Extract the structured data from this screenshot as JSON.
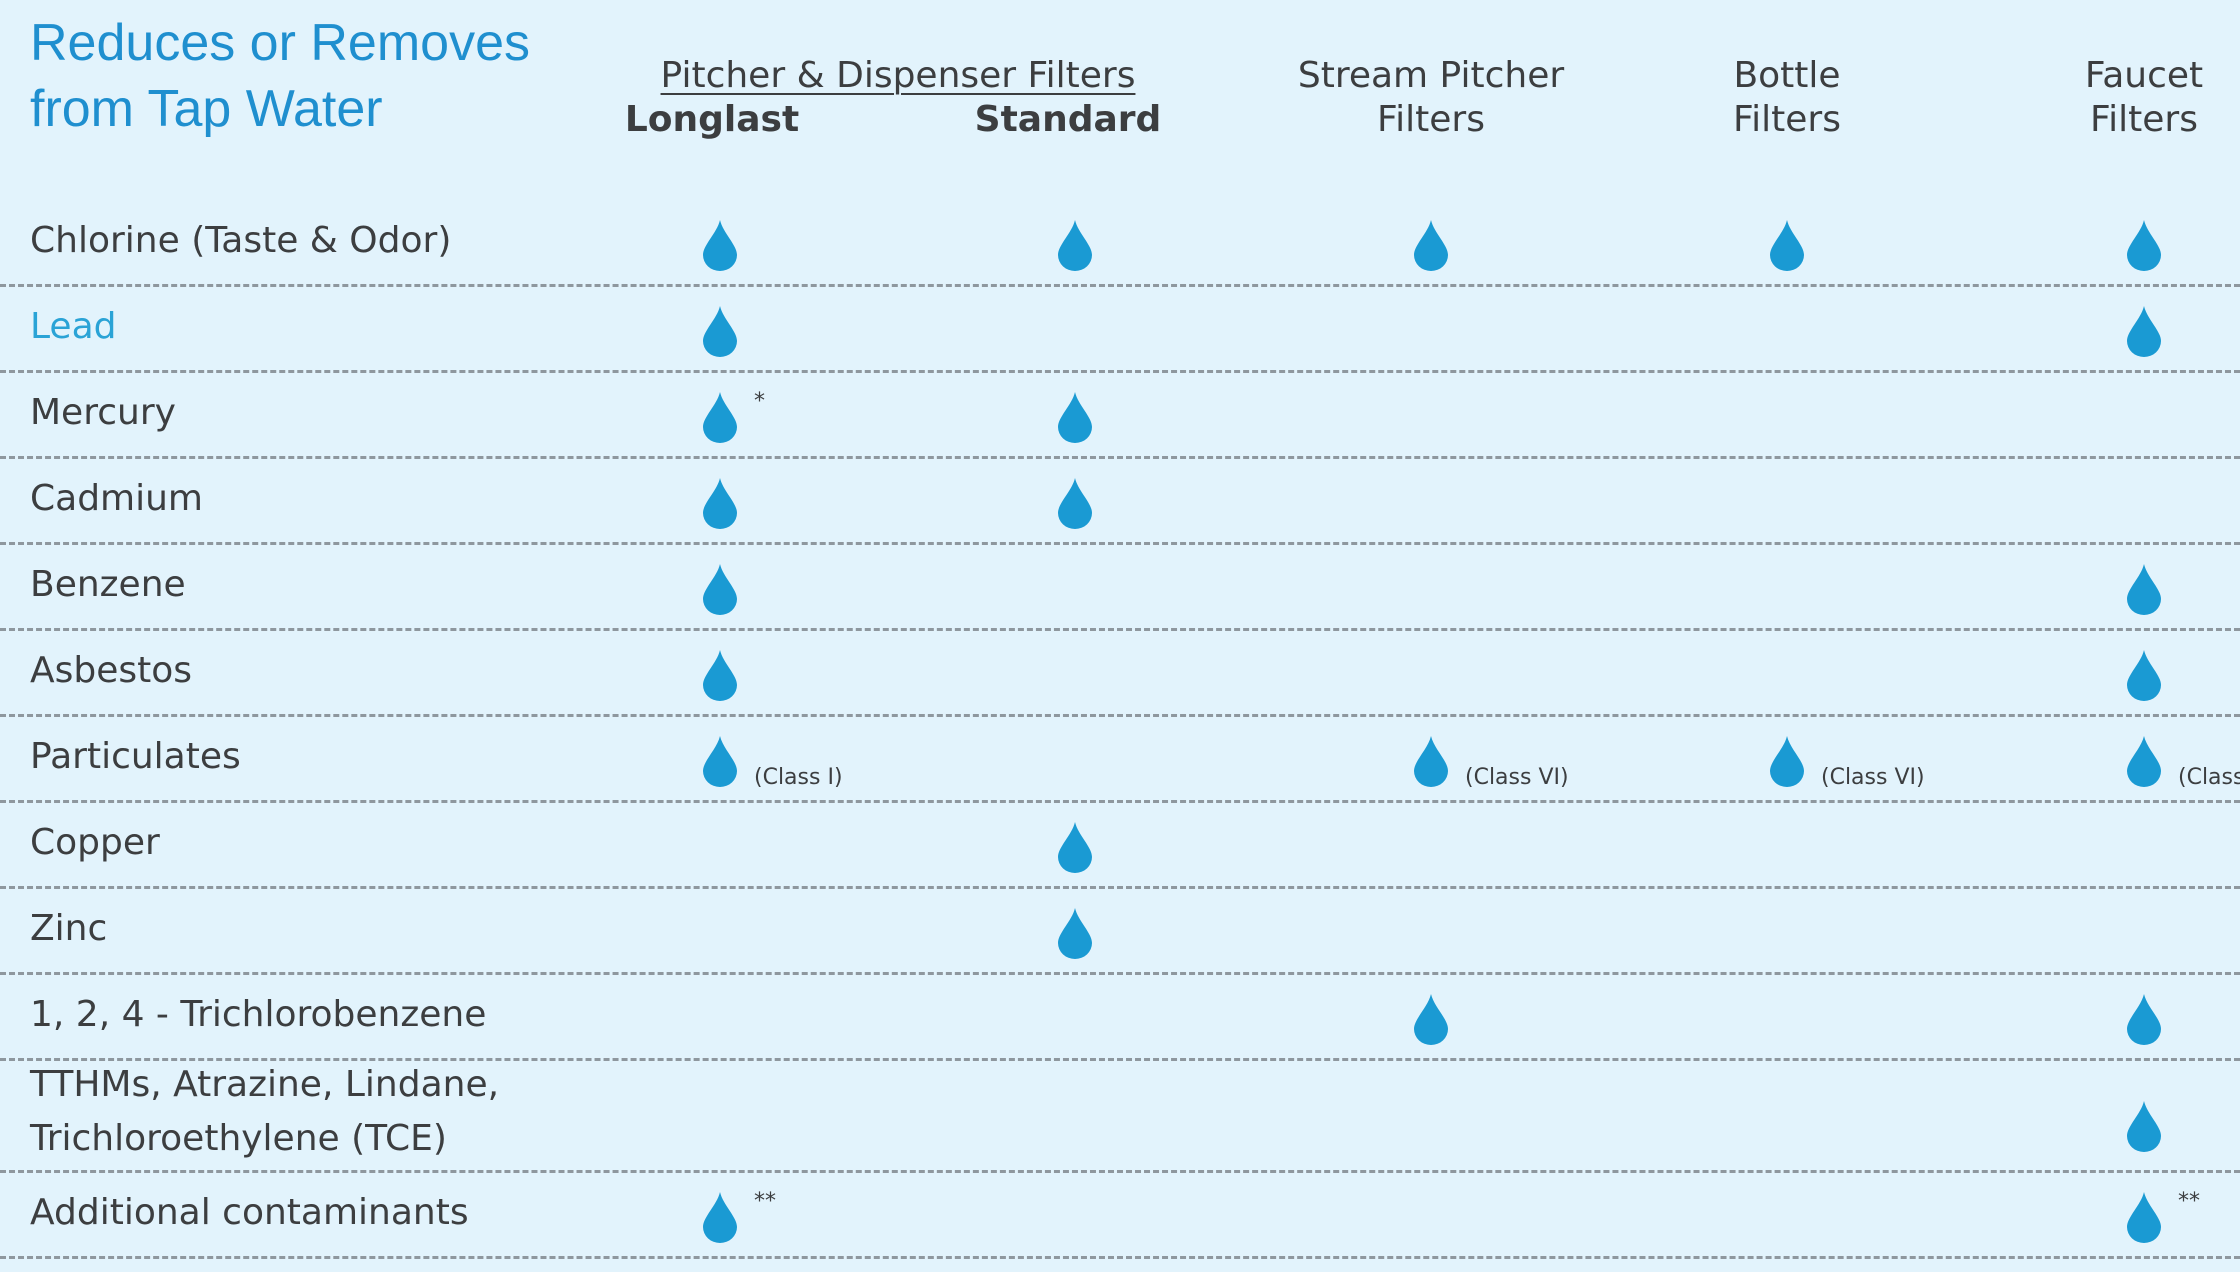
{
  "title": {
    "line1": "Reduces or Removes",
    "line2": "from Tap Water"
  },
  "colors": {
    "drop": "#1a9ad3",
    "title": "#1f8fcf",
    "highlight_label": "#2aa3d6",
    "text": "#3c3e40",
    "background": "#e2f3fc",
    "divider": "#8e979e"
  },
  "columns": {
    "group_label": "Pitcher & Dispenser Filters",
    "longlast": "Longlast",
    "standard": "Standard",
    "stream_line1": "Stream Pitcher",
    "stream_line2": "Filters",
    "bottle_line1": "Bottle",
    "bottle_line2": "Filters",
    "faucet_line1": "Faucet",
    "faucet_line2": "Filters"
  },
  "column_keys": [
    "longlast",
    "standard",
    "stream",
    "bottle",
    "faucet"
  ],
  "icon": "water-drop-icon",
  "rows": [
    {
      "label": "Chlorine (Taste & Odor)",
      "highlight": false,
      "drops": [
        true,
        true,
        true,
        true,
        true
      ],
      "notes": [
        "",
        "",
        "",
        "",
        ""
      ]
    },
    {
      "label": "Lead",
      "highlight": true,
      "drops": [
        true,
        false,
        false,
        false,
        true
      ],
      "notes": [
        "",
        "",
        "",
        "",
        ""
      ]
    },
    {
      "label": "Mercury",
      "highlight": false,
      "drops": [
        true,
        true,
        false,
        false,
        false
      ],
      "notes": [
        "*",
        "",
        "",
        "",
        ""
      ]
    },
    {
      "label": "Cadmium",
      "highlight": false,
      "drops": [
        true,
        true,
        false,
        false,
        false
      ],
      "notes": [
        "",
        "",
        "",
        "",
        ""
      ]
    },
    {
      "label": "Benzene",
      "highlight": false,
      "drops": [
        true,
        false,
        false,
        false,
        true
      ],
      "notes": [
        "",
        "",
        "",
        "",
        ""
      ]
    },
    {
      "label": "Asbestos",
      "highlight": false,
      "drops": [
        true,
        false,
        false,
        false,
        true
      ],
      "notes": [
        "",
        "",
        "",
        "",
        ""
      ]
    },
    {
      "label": "Particulates",
      "highlight": false,
      "drops": [
        true,
        false,
        true,
        true,
        true
      ],
      "notes": [
        "(Class I)",
        "",
        "(Class VI)",
        "(Class VI)",
        "(Class"
      ]
    },
    {
      "label": "Copper",
      "highlight": false,
      "drops": [
        false,
        true,
        false,
        false,
        false
      ],
      "notes": [
        "",
        "",
        "",
        "",
        ""
      ]
    },
    {
      "label": "Zinc",
      "highlight": false,
      "drops": [
        false,
        true,
        false,
        false,
        false
      ],
      "notes": [
        "",
        "",
        "",
        "",
        ""
      ]
    },
    {
      "label": "1, 2, 4 - Trichlorobenzene",
      "highlight": false,
      "drops": [
        false,
        false,
        true,
        false,
        true
      ],
      "notes": [
        "",
        "",
        "",
        "",
        ""
      ]
    },
    {
      "label": "TTHMs, Atrazine, Lindane,",
      "label2": "Trichloroethylene (TCE)",
      "highlight": false,
      "drops": [
        false,
        false,
        false,
        false,
        true
      ],
      "notes": [
        "",
        "",
        "",
        "",
        ""
      ]
    },
    {
      "label": "Additional contaminants",
      "highlight": false,
      "drops": [
        true,
        false,
        false,
        false,
        true
      ],
      "notes": [
        "**",
        "",
        "",
        "",
        "**"
      ]
    }
  ]
}
